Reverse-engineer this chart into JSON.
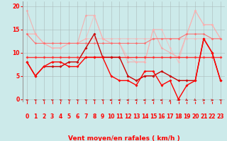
{
  "x": [
    0,
    1,
    2,
    3,
    4,
    5,
    6,
    7,
    8,
    9,
    10,
    11,
    12,
    13,
    14,
    15,
    16,
    17,
    18,
    19,
    20,
    21,
    22,
    23
  ],
  "series": [
    {
      "color": "#FF9999",
      "linewidth": 0.8,
      "alpha": 0.7,
      "marker": "D",
      "markersize": 1.8,
      "y": [
        19,
        14,
        12,
        11,
        11,
        12,
        12,
        18,
        18,
        13,
        12,
        12,
        8,
        8,
        8,
        15,
        11,
        10,
        9,
        14,
        19,
        16,
        16,
        13
      ]
    },
    {
      "color": "#FFB3B3",
      "linewidth": 0.8,
      "alpha": 0.65,
      "marker": "D",
      "markersize": 1.8,
      "y": [
        14,
        14,
        12,
        11,
        11,
        12,
        12,
        13,
        18,
        13,
        12,
        12,
        9,
        8,
        8,
        15,
        15,
        11,
        8,
        14,
        19,
        16,
        16,
        13
      ]
    },
    {
      "color": "#FFAAAA",
      "linewidth": 0.8,
      "alpha": 0.6,
      "marker": "D",
      "markersize": 1.8,
      "y": [
        14,
        14,
        12,
        12,
        12,
        12,
        12,
        13,
        13,
        13,
        13,
        13,
        13,
        13,
        13,
        13,
        13,
        13,
        13,
        13,
        13,
        13,
        13,
        13
      ]
    },
    {
      "color": "#FF6666",
      "linewidth": 0.8,
      "alpha": 0.85,
      "marker": "D",
      "markersize": 1.8,
      "y": [
        14,
        12,
        12,
        12,
        12,
        12,
        12,
        12,
        12,
        12,
        12,
        12,
        12,
        12,
        12,
        13,
        13,
        13,
        13,
        14,
        14,
        14,
        13,
        13
      ]
    },
    {
      "color": "#FF3333",
      "linewidth": 1.0,
      "alpha": 1.0,
      "marker": "D",
      "markersize": 2.0,
      "y": [
        9,
        9,
        9,
        9,
        9,
        9,
        9,
        9,
        9,
        9,
        9,
        9,
        9,
        9,
        9,
        9,
        9,
        9,
        9,
        9,
        9,
        9,
        9,
        9
      ]
    },
    {
      "color": "#CC0000",
      "linewidth": 1.0,
      "alpha": 1.0,
      "marker": "D",
      "markersize": 2.0,
      "y": [
        8,
        5,
        7,
        7,
        7,
        8,
        8,
        11,
        14,
        9,
        9,
        9,
        5,
        4,
        5,
        5,
        6,
        5,
        4,
        4,
        4,
        13,
        10,
        4
      ]
    },
    {
      "color": "#FF0000",
      "linewidth": 1.0,
      "alpha": 1.0,
      "marker": "D",
      "markersize": 2.0,
      "y": [
        8,
        5,
        7,
        8,
        8,
        7,
        7,
        9,
        9,
        9,
        5,
        4,
        4,
        3,
        6,
        6,
        3,
        4,
        0,
        3,
        4,
        13,
        10,
        4
      ]
    }
  ],
  "xlabel": "Vent moyen/en rafales ( km/h )",
  "xlim": [
    -0.5,
    23.5
  ],
  "ylim": [
    -0.5,
    21
  ],
  "yticks": [
    0,
    5,
    10,
    15,
    20
  ],
  "xticks": [
    0,
    1,
    2,
    3,
    4,
    5,
    6,
    7,
    8,
    9,
    10,
    11,
    12,
    13,
    14,
    15,
    16,
    17,
    18,
    19,
    20,
    21,
    22,
    23
  ],
  "bg_color": "#cceaea",
  "grid_color": "#aabbbb",
  "xlabel_color": "#FF0000",
  "tick_color": "#FF0000",
  "xlabel_fontsize": 6.5,
  "tick_fontsize": 5.5
}
